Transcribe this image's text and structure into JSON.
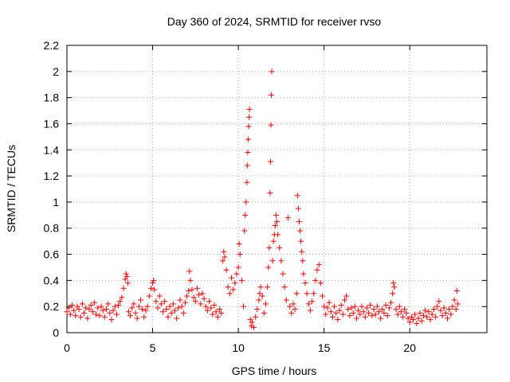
{
  "chart_data": {
    "type": "scatter",
    "title": "Day 360 of 2024, SRMTID for receiver rvso",
    "xlabel": "GPS time / hours",
    "ylabel": "SRMTID / TECUs",
    "xlim": [
      0,
      24.5
    ],
    "ylim": [
      0,
      2.2
    ],
    "x_ticks": [
      0,
      5,
      10,
      15,
      20
    ],
    "x_tick_labels": [
      "0",
      "5",
      "10",
      "15",
      "20"
    ],
    "y_ticks": [
      0,
      0.2,
      0.4,
      0.6,
      0.8,
      1,
      1.2,
      1.4,
      1.6,
      1.8,
      2,
      2.2
    ],
    "y_tick_labels": [
      "0",
      "0.2",
      "0.4",
      "0.6",
      "0.8",
      "1",
      "1.2",
      "1.4",
      "1.6",
      "1.8",
      "2",
      "2.2"
    ],
    "grid": true,
    "marker": "plus",
    "color": "#ff0000",
    "series": [
      {
        "name": "SRMTID",
        "points": [
          [
            0.0,
            0.16
          ],
          [
            0.1,
            0.19
          ],
          [
            0.2,
            0.14
          ],
          [
            0.3,
            0.21
          ],
          [
            0.4,
            0.17
          ],
          [
            0.5,
            0.13
          ],
          [
            0.6,
            0.2
          ],
          [
            0.7,
            0.18
          ],
          [
            0.8,
            0.12
          ],
          [
            0.9,
            0.22
          ],
          [
            1.0,
            0.15
          ],
          [
            1.1,
            0.19
          ],
          [
            1.2,
            0.11
          ],
          [
            1.3,
            0.18
          ],
          [
            1.4,
            0.21
          ],
          [
            1.5,
            0.16
          ],
          [
            1.6,
            0.23
          ],
          [
            1.7,
            0.14
          ],
          [
            1.8,
            0.19
          ],
          [
            1.9,
            0.13
          ],
          [
            2.0,
            0.2
          ],
          [
            2.1,
            0.17
          ],
          [
            2.2,
            0.12
          ],
          [
            2.3,
            0.18
          ],
          [
            2.4,
            0.22
          ],
          [
            2.5,
            0.15
          ],
          [
            2.6,
            0.1
          ],
          [
            2.7,
            0.17
          ],
          [
            2.8,
            0.2
          ],
          [
            2.9,
            0.14
          ],
          [
            3.0,
            0.21
          ],
          [
            3.1,
            0.24
          ],
          [
            3.2,
            0.27
          ],
          [
            3.3,
            0.34
          ],
          [
            3.4,
            0.41
          ],
          [
            3.45,
            0.45
          ],
          [
            3.5,
            0.43
          ],
          [
            3.55,
            0.38
          ],
          [
            3.6,
            0.16
          ],
          [
            3.7,
            0.13
          ],
          [
            3.8,
            0.19
          ],
          [
            3.9,
            0.22
          ],
          [
            4.0,
            0.15
          ],
          [
            4.1,
            0.11
          ],
          [
            4.2,
            0.2
          ],
          [
            4.3,
            0.25
          ],
          [
            4.4,
            0.18
          ],
          [
            4.5,
            0.12
          ],
          [
            4.6,
            0.17
          ],
          [
            4.7,
            0.2
          ],
          [
            4.8,
            0.28
          ],
          [
            4.9,
            0.34
          ],
          [
            5.0,
            0.38
          ],
          [
            5.05,
            0.4
          ],
          [
            5.1,
            0.33
          ],
          [
            5.2,
            0.24
          ],
          [
            5.3,
            0.19
          ],
          [
            5.4,
            0.28
          ],
          [
            5.5,
            0.22
          ],
          [
            5.6,
            0.16
          ],
          [
            5.7,
            0.24
          ],
          [
            5.8,
            0.18
          ],
          [
            5.9,
            0.12
          ],
          [
            6.0,
            0.2
          ],
          [
            6.1,
            0.15
          ],
          [
            6.2,
            0.22
          ],
          [
            6.3,
            0.17
          ],
          [
            6.4,
            0.11
          ],
          [
            6.5,
            0.19
          ],
          [
            6.6,
            0.25
          ],
          [
            6.7,
            0.2
          ],
          [
            6.8,
            0.15
          ],
          [
            6.9,
            0.23
          ],
          [
            7.0,
            0.28
          ],
          [
            7.1,
            0.32
          ],
          [
            7.15,
            0.47
          ],
          [
            7.2,
            0.4
          ],
          [
            7.3,
            0.33
          ],
          [
            7.4,
            0.27
          ],
          [
            7.5,
            0.24
          ],
          [
            7.6,
            0.34
          ],
          [
            7.7,
            0.29
          ],
          [
            7.8,
            0.22
          ],
          [
            7.9,
            0.3
          ],
          [
            8.0,
            0.26
          ],
          [
            8.1,
            0.2
          ],
          [
            8.2,
            0.17
          ],
          [
            8.3,
            0.24
          ],
          [
            8.4,
            0.19
          ],
          [
            8.5,
            0.14
          ],
          [
            8.6,
            0.21
          ],
          [
            8.7,
            0.16
          ],
          [
            8.8,
            0.12
          ],
          [
            8.9,
            0.18
          ],
          [
            9.0,
            0.15
          ],
          [
            9.1,
            0.55
          ],
          [
            9.15,
            0.62
          ],
          [
            9.2,
            0.58
          ],
          [
            9.3,
            0.48
          ],
          [
            9.4,
            0.35
          ],
          [
            9.5,
            0.3
          ],
          [
            9.6,
            0.42
          ],
          [
            9.7,
            0.33
          ],
          [
            9.8,
            0.38
          ],
          [
            9.9,
            0.45
          ],
          [
            10.0,
            0.5
          ],
          [
            10.05,
            0.68
          ],
          [
            10.1,
            0.6
          ],
          [
            10.2,
            0.4
          ],
          [
            10.3,
            0.2
          ],
          [
            10.35,
            0.78
          ],
          [
            10.4,
            0.9
          ],
          [
            10.45,
            1.0
          ],
          [
            10.5,
            1.15
          ],
          [
            10.52,
            1.28
          ],
          [
            10.55,
            1.38
          ],
          [
            10.58,
            1.48
          ],
          [
            10.6,
            1.58
          ],
          [
            10.62,
            1.65
          ],
          [
            10.65,
            1.71
          ],
          [
            10.7,
            0.1
          ],
          [
            10.75,
            0.05
          ],
          [
            10.8,
            0.08
          ],
          [
            10.9,
            0.04
          ],
          [
            11.0,
            0.12
          ],
          [
            11.1,
            0.18
          ],
          [
            11.2,
            0.25
          ],
          [
            11.25,
            0.3
          ],
          [
            11.3,
            0.35
          ],
          [
            11.4,
            0.28
          ],
          [
            11.5,
            0.15
          ],
          [
            11.6,
            0.22
          ],
          [
            11.7,
            0.35
          ],
          [
            11.75,
            0.5
          ],
          [
            11.8,
            0.65
          ],
          [
            11.85,
            1.07
          ],
          [
            11.88,
            1.31
          ],
          [
            11.9,
            1.59
          ],
          [
            11.92,
            1.82
          ],
          [
            11.95,
            2.0
          ],
          [
            12.0,
            0.55
          ],
          [
            12.05,
            0.7
          ],
          [
            12.1,
            0.75
          ],
          [
            12.15,
            0.82
          ],
          [
            12.2,
            0.9
          ],
          [
            12.25,
            0.85
          ],
          [
            12.3,
            0.75
          ],
          [
            12.4,
            0.65
          ],
          [
            12.5,
            0.55
          ],
          [
            12.6,
            0.45
          ],
          [
            12.7,
            0.35
          ],
          [
            12.8,
            0.25
          ],
          [
            12.9,
            0.88
          ],
          [
            13.0,
            0.2
          ],
          [
            13.1,
            0.15
          ],
          [
            13.2,
            0.22
          ],
          [
            13.3,
            0.18
          ],
          [
            13.4,
            0.3
          ],
          [
            13.45,
            1.05
          ],
          [
            13.5,
            0.95
          ],
          [
            13.55,
            0.85
          ],
          [
            13.6,
            0.78
          ],
          [
            13.65,
            0.7
          ],
          [
            13.7,
            0.62
          ],
          [
            13.75,
            0.55
          ],
          [
            13.8,
            0.45
          ],
          [
            13.9,
            0.38
          ],
          [
            14.0,
            0.3
          ],
          [
            14.1,
            0.22
          ],
          [
            14.2,
            0.17
          ],
          [
            14.3,
            0.24
          ],
          [
            14.4,
            0.3
          ],
          [
            14.5,
            0.4
          ],
          [
            14.6,
            0.48
          ],
          [
            14.7,
            0.52
          ],
          [
            14.8,
            0.38
          ],
          [
            14.9,
            0.28
          ],
          [
            15.0,
            0.2
          ],
          [
            15.1,
            0.14
          ],
          [
            15.2,
            0.19
          ],
          [
            15.3,
            0.23
          ],
          [
            15.4,
            0.16
          ],
          [
            15.5,
            0.12
          ],
          [
            15.6,
            0.2
          ],
          [
            15.7,
            0.15
          ],
          [
            15.8,
            0.1
          ],
          [
            15.9,
            0.17
          ],
          [
            16.0,
            0.21
          ],
          [
            16.1,
            0.14
          ],
          [
            16.2,
            0.25
          ],
          [
            16.3,
            0.28
          ],
          [
            16.4,
            0.18
          ],
          [
            16.5,
            0.13
          ],
          [
            16.6,
            0.19
          ],
          [
            16.7,
            0.15
          ],
          [
            16.8,
            0.2
          ],
          [
            16.9,
            0.11
          ],
          [
            17.0,
            0.17
          ],
          [
            17.1,
            0.14
          ],
          [
            17.2,
            0.2
          ],
          [
            17.3,
            0.16
          ],
          [
            17.4,
            0.12
          ],
          [
            17.5,
            0.19
          ],
          [
            17.6,
            0.15
          ],
          [
            17.7,
            0.21
          ],
          [
            17.8,
            0.13
          ],
          [
            17.9,
            0.18
          ],
          [
            18.0,
            0.14
          ],
          [
            18.1,
            0.2
          ],
          [
            18.2,
            0.16
          ],
          [
            18.3,
            0.11
          ],
          [
            18.4,
            0.18
          ],
          [
            18.5,
            0.15
          ],
          [
            18.6,
            0.21
          ],
          [
            18.7,
            0.13
          ],
          [
            18.8,
            0.19
          ],
          [
            18.9,
            0.23
          ],
          [
            19.0,
            0.3
          ],
          [
            19.05,
            0.38
          ],
          [
            19.1,
            0.35
          ],
          [
            19.2,
            0.18
          ],
          [
            19.3,
            0.14
          ],
          [
            19.4,
            0.2
          ],
          [
            19.5,
            0.16
          ],
          [
            19.6,
            0.12
          ],
          [
            19.7,
            0.18
          ],
          [
            19.8,
            0.15
          ],
          [
            19.9,
            0.11
          ],
          [
            20.0,
            0.08
          ],
          [
            20.1,
            0.12
          ],
          [
            20.2,
            0.1
          ],
          [
            20.3,
            0.14
          ],
          [
            20.4,
            0.07
          ],
          [
            20.5,
            0.11
          ],
          [
            20.6,
            0.15
          ],
          [
            20.7,
            0.09
          ],
          [
            20.8,
            0.13
          ],
          [
            20.9,
            0.17
          ],
          [
            21.0,
            0.12
          ],
          [
            21.1,
            0.16
          ],
          [
            21.2,
            0.1
          ],
          [
            21.3,
            0.14
          ],
          [
            21.4,
            0.18
          ],
          [
            21.5,
            0.12
          ],
          [
            21.6,
            0.2
          ],
          [
            21.7,
            0.24
          ],
          [
            21.8,
            0.17
          ],
          [
            21.9,
            0.13
          ],
          [
            22.0,
            0.19
          ],
          [
            22.1,
            0.15
          ],
          [
            22.2,
            0.11
          ],
          [
            22.3,
            0.18
          ],
          [
            22.4,
            0.14
          ],
          [
            22.5,
            0.2
          ],
          [
            22.6,
            0.25
          ],
          [
            22.7,
            0.18
          ],
          [
            22.75,
            0.32
          ],
          [
            22.8,
            0.22
          ]
        ]
      }
    ]
  }
}
